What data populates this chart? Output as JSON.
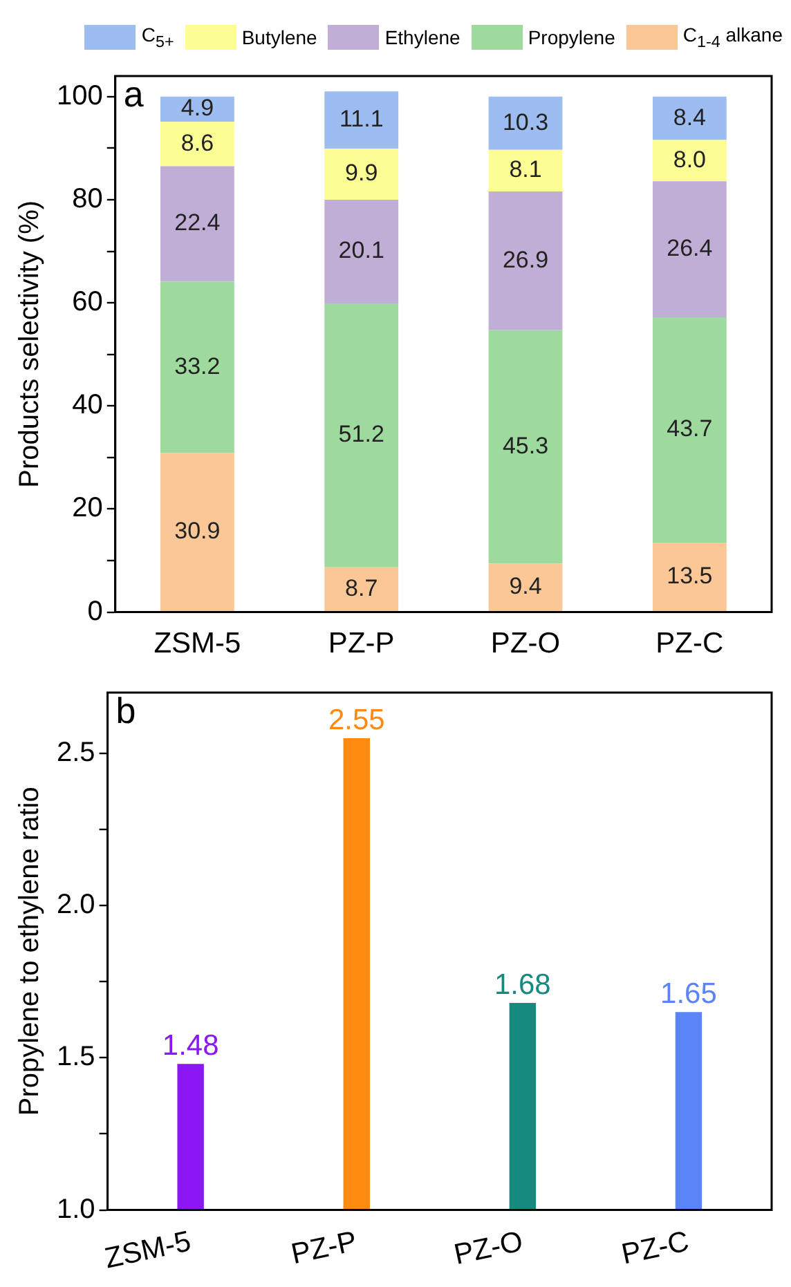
{
  "chart_data": [
    {
      "type": "bar",
      "stacked": true,
      "ylabel": "Products selectivity (%)",
      "annotations": [
        "a"
      ],
      "legend": "top",
      "categories": [
        "ZSM-5",
        "PZ-P",
        "PZ-O",
        "PZ-C"
      ],
      "ylim": [
        0,
        104
      ],
      "yticks": [
        0,
        {
          "value": 10,
          "label": null
        },
        20,
        {
          "value": 30,
          "label": null
        },
        40,
        {
          "value": 50,
          "label": null
        },
        60,
        {
          "value": 70,
          "label": null
        },
        80,
        {
          "value": 90,
          "label": null
        },
        100
      ],
      "series": [
        {
          "name": "C$_{1-4}$ alkane",
          "color": "#fbc797",
          "values": [
            30.9,
            8.7,
            9.4,
            13.5
          ],
          "value_labels": [
            "30.9",
            "8.7",
            "9.4",
            "13.5"
          ]
        },
        {
          "name": "Propylene",
          "color": "#9ed99e",
          "values": [
            33.2,
            51.2,
            45.3,
            43.7
          ],
          "value_labels": [
            "33.2",
            "51.2",
            "45.3",
            "43.7"
          ]
        },
        {
          "name": "Ethylene",
          "color": "#c0aed6",
          "values": [
            22.4,
            20.1,
            26.9,
            26.4
          ],
          "value_labels": [
            "22.4",
            "20.1",
            "26.9",
            "26.4"
          ]
        },
        {
          "name": "Butylene",
          "color": "#fdfd96",
          "values": [
            8.6,
            9.9,
            8.1,
            8.0
          ],
          "value_labels": [
            "8.6",
            "9.9",
            "8.1",
            "8.0"
          ]
        },
        {
          "name": "C$_{5+}$",
          "color": "#9dbcef",
          "values": [
            4.9,
            11.1,
            10.3,
            8.4
          ],
          "value_labels": [
            "4.9",
            "11.1",
            "10.3",
            "8.4"
          ]
        }
      ]
    },
    {
      "type": "bar",
      "ylabel": "Propylene to ethylene ratio",
      "annotations": [
        "b"
      ],
      "categories": [
        "ZSM-5",
        "PZ-P",
        "PZ-O",
        "PZ-C"
      ],
      "values": [
        1.48,
        2.55,
        1.68,
        1.65
      ],
      "colors": [
        "#8b17f5",
        "#ff8a10",
        "#178a80",
        "#5a84f7"
      ],
      "data_labels": true,
      "ylim": [
        1.0,
        2.7
      ],
      "yticks": [
        {
          "value": 1.0,
          "label": "1.0"
        },
        {
          "value": 1.25,
          "label": null
        },
        1.5,
        {
          "value": 1.75,
          "label": null
        },
        {
          "value": 2.0,
          "label": "2.0"
        },
        {
          "value": 2.25,
          "label": null
        },
        2.5
      ]
    }
  ]
}
